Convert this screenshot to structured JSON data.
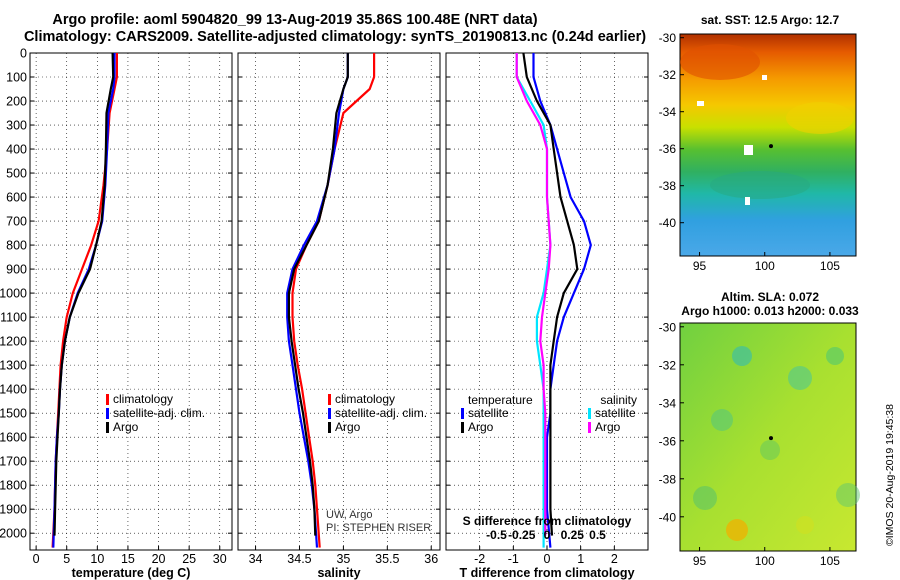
{
  "titles": {
    "line1": "Argo profile: aoml 5904820_99 13-Aug-2019 35.86S 100.48E (NRT data)",
    "line2": "Climatology: CARS2009. Satellite-adjusted climatology: synTS_20190813.nc (0.24d earlier)"
  },
  "colors": {
    "climatology": "#ff0000",
    "satellite": "#0000ff",
    "argo": "#000000",
    "sat_s": "#00e5ff",
    "argo_s": "#ff00ff"
  },
  "stamp": "©IMOS 20-Aug-2019 19:45:38",
  "chart_data": [
    {
      "id": "temperature",
      "type": "line",
      "xlabel": "temperature (deg C)",
      "ylabel": "",
      "xlim": [
        -1,
        32
      ],
      "ylim": [
        2070,
        0
      ],
      "xticks": [
        0,
        5,
        10,
        15,
        20,
        25,
        30
      ],
      "yticks": [
        0,
        100,
        200,
        300,
        400,
        500,
        600,
        700,
        800,
        900,
        1000,
        1100,
        1200,
        1300,
        1400,
        1500,
        1600,
        1700,
        1800,
        1900,
        2000
      ],
      "legend": [
        "climatology",
        "satellite-adj. clim.",
        "Argo"
      ],
      "series": [
        {
          "name": "climatology",
          "color": "#ff0000",
          "points": [
            [
              13.2,
              0
            ],
            [
              13.2,
              100
            ],
            [
              12.8,
              150
            ],
            [
              12.0,
              250
            ],
            [
              11.6,
              400
            ],
            [
              11.0,
              550
            ],
            [
              10.2,
              700
            ],
            [
              9.0,
              800
            ],
            [
              7.5,
              900
            ],
            [
              6.0,
              1000
            ],
            [
              5.0,
              1100
            ],
            [
              4.4,
              1200
            ],
            [
              4.0,
              1300
            ],
            [
              3.8,
              1400
            ],
            [
              3.6,
              1500
            ],
            [
              3.4,
              1600
            ],
            [
              3.2,
              1700
            ],
            [
              3.1,
              1800
            ],
            [
              3.0,
              1900
            ],
            [
              2.7,
              2060
            ]
          ]
        },
        {
          "name": "satellite-adj. clim.",
          "color": "#0000ff",
          "points": [
            [
              12.8,
              0
            ],
            [
              12.8,
              100
            ],
            [
              12.6,
              150
            ],
            [
              11.8,
              250
            ],
            [
              11.6,
              400
            ],
            [
              11.3,
              550
            ],
            [
              10.8,
              700
            ],
            [
              9.8,
              800
            ],
            [
              8.6,
              900
            ],
            [
              6.8,
              1000
            ],
            [
              5.5,
              1100
            ],
            [
              4.7,
              1200
            ],
            [
              4.2,
              1300
            ],
            [
              3.9,
              1400
            ],
            [
              3.7,
              1500
            ],
            [
              3.4,
              1600
            ],
            [
              3.2,
              1700
            ],
            [
              3.1,
              1800
            ],
            [
              3.0,
              1900
            ],
            [
              2.8,
              2060
            ]
          ]
        },
        {
          "name": "Argo",
          "color": "#000000",
          "points": [
            [
              12.5,
              0
            ],
            [
              12.6,
              100
            ],
            [
              12.2,
              150
            ],
            [
              11.5,
              250
            ],
            [
              11.4,
              400
            ],
            [
              11.2,
              550
            ],
            [
              10.7,
              700
            ],
            [
              9.8,
              800
            ],
            [
              8.8,
              900
            ],
            [
              6.9,
              1000
            ],
            [
              5.5,
              1100
            ],
            [
              4.7,
              1200
            ],
            [
              4.2,
              1300
            ],
            [
              3.9,
              1400
            ],
            [
              3.7,
              1500
            ],
            [
              3.5,
              1600
            ],
            [
              3.3,
              1700
            ],
            [
              3.2,
              1800
            ],
            [
              3.1,
              1900
            ],
            [
              3.0,
              2010
            ]
          ]
        }
      ]
    },
    {
      "id": "salinity",
      "type": "line",
      "xlabel": "salinity",
      "xlim": [
        33.8,
        36.1
      ],
      "ylim": [
        2070,
        0
      ],
      "xticks": [
        34,
        34.5,
        35,
        35.5,
        36
      ],
      "ytick_labels_visible": false,
      "legend": [
        "climatology",
        "satellite-adj. clim.",
        "Argo"
      ],
      "annotation": [
        "UW, Argo",
        "PI: STEPHEN RISER"
      ],
      "series": [
        {
          "name": "climatology",
          "color": "#ff0000",
          "points": [
            [
              35.35,
              0
            ],
            [
              35.35,
              100
            ],
            [
              35.3,
              150
            ],
            [
              35.0,
              250
            ],
            [
              34.9,
              400
            ],
            [
              34.82,
              550
            ],
            [
              34.72,
              700
            ],
            [
              34.58,
              800
            ],
            [
              34.46,
              900
            ],
            [
              34.42,
              1000
            ],
            [
              34.42,
              1100
            ],
            [
              34.44,
              1200
            ],
            [
              34.48,
              1300
            ],
            [
              34.53,
              1400
            ],
            [
              34.57,
              1500
            ],
            [
              34.61,
              1600
            ],
            [
              34.65,
              1700
            ],
            [
              34.68,
              1800
            ],
            [
              34.7,
              1900
            ],
            [
              34.73,
              2060
            ]
          ]
        },
        {
          "name": "satellite-adj. clim.",
          "color": "#0000ff",
          "points": [
            [
              35.05,
              0
            ],
            [
              35.05,
              100
            ],
            [
              35.0,
              150
            ],
            [
              34.95,
              250
            ],
            [
              34.9,
              400
            ],
            [
              34.82,
              550
            ],
            [
              34.7,
              700
            ],
            [
              34.55,
              800
            ],
            [
              34.42,
              900
            ],
            [
              34.36,
              1000
            ],
            [
              34.36,
              1100
            ],
            [
              34.38,
              1200
            ],
            [
              34.42,
              1300
            ],
            [
              34.46,
              1400
            ],
            [
              34.5,
              1500
            ],
            [
              34.55,
              1600
            ],
            [
              34.6,
              1700
            ],
            [
              34.64,
              1800
            ],
            [
              34.67,
              1900
            ],
            [
              34.7,
              2060
            ]
          ]
        },
        {
          "name": "Argo",
          "color": "#000000",
          "points": [
            [
              35.05,
              0
            ],
            [
              35.05,
              100
            ],
            [
              35.0,
              150
            ],
            [
              34.92,
              250
            ],
            [
              34.88,
              400
            ],
            [
              34.82,
              550
            ],
            [
              34.72,
              700
            ],
            [
              34.58,
              800
            ],
            [
              34.44,
              900
            ],
            [
              34.38,
              1000
            ],
            [
              34.38,
              1100
            ],
            [
              34.41,
              1200
            ],
            [
              34.45,
              1300
            ],
            [
              34.49,
              1400
            ],
            [
              34.54,
              1500
            ],
            [
              34.58,
              1600
            ],
            [
              34.62,
              1700
            ],
            [
              34.65,
              1800
            ],
            [
              34.67,
              1900
            ],
            [
              34.68,
              2010
            ]
          ]
        }
      ]
    },
    {
      "id": "difference",
      "type": "line",
      "xlabel": "T difference from climatology",
      "xlabel_top": "S difference from climatology",
      "xlim": [
        -3,
        3
      ],
      "ylim": [
        2070,
        0
      ],
      "xticks": [
        -2,
        -1,
        0,
        1,
        2
      ],
      "top_ticks": [
        {
          "v": -1.5,
          "label": "-0.5"
        },
        {
          "v": -0.75,
          "label": "-0.25"
        },
        {
          "v": 0,
          "label": "0"
        },
        {
          "v": 0.75,
          "label": "0.25"
        },
        {
          "v": 1.5,
          "label": "0.5"
        }
      ],
      "legend_left_title": "temperature",
      "legend_right_title": "salinity",
      "legend_left": [
        "satellite",
        "Argo"
      ],
      "legend_right": [
        "satellite",
        "Argo"
      ],
      "series": [
        {
          "name": "T satellite",
          "color": "#0000ff",
          "points": [
            [
              -0.4,
              0
            ],
            [
              -0.4,
              100
            ],
            [
              -0.2,
              200
            ],
            [
              0.1,
              300
            ],
            [
              0.3,
              400
            ],
            [
              0.5,
              500
            ],
            [
              0.7,
              600
            ],
            [
              1.1,
              700
            ],
            [
              1.3,
              800
            ],
            [
              1.1,
              900
            ],
            [
              0.8,
              1000
            ],
            [
              0.5,
              1100
            ],
            [
              0.3,
              1200
            ],
            [
              0.2,
              1300
            ],
            [
              0.1,
              1400
            ],
            [
              0.1,
              1500
            ],
            [
              0.0,
              1600
            ],
            [
              0.0,
              1700
            ],
            [
              0.0,
              1800
            ],
            [
              0.0,
              1900
            ],
            [
              0.1,
              2060
            ]
          ]
        },
        {
          "name": "T Argo",
          "color": "#000000",
          "points": [
            [
              -0.7,
              0
            ],
            [
              -0.6,
              100
            ],
            [
              -0.3,
              200
            ],
            [
              0.1,
              300
            ],
            [
              0.2,
              400
            ],
            [
              0.3,
              500
            ],
            [
              0.4,
              600
            ],
            [
              0.6,
              700
            ],
            [
              0.8,
              800
            ],
            [
              0.9,
              900
            ],
            [
              0.5,
              1000
            ],
            [
              0.3,
              1100
            ],
            [
              0.2,
              1200
            ],
            [
              0.1,
              1300
            ],
            [
              0.1,
              1400
            ],
            [
              0.1,
              1500
            ],
            [
              0.1,
              1600
            ],
            [
              0.1,
              1700
            ],
            [
              0.1,
              1800
            ],
            [
              0.1,
              1900
            ],
            [
              0.15,
              2010
            ]
          ]
        },
        {
          "name": "S satellite",
          "color": "#00e5ff",
          "points": [
            [
              -0.9,
              0
            ],
            [
              -0.9,
              100
            ],
            [
              -0.5,
              200
            ],
            [
              -0.1,
              300
            ],
            [
              0.0,
              400
            ],
            [
              0.0,
              500
            ],
            [
              0.0,
              600
            ],
            [
              0.05,
              700
            ],
            [
              0.1,
              800
            ],
            [
              0.0,
              900
            ],
            [
              -0.1,
              1000
            ],
            [
              -0.3,
              1100
            ],
            [
              -0.3,
              1200
            ],
            [
              -0.2,
              1300
            ],
            [
              -0.1,
              1400
            ],
            [
              -0.1,
              1500
            ],
            [
              -0.1,
              1600
            ],
            [
              -0.1,
              1700
            ],
            [
              -0.1,
              1800
            ],
            [
              -0.1,
              1900
            ],
            [
              -0.1,
              2060
            ]
          ]
        },
        {
          "name": "S Argo",
          "color": "#ff00ff",
          "points": [
            [
              -0.9,
              0
            ],
            [
              -0.9,
              100
            ],
            [
              -0.6,
              200
            ],
            [
              -0.2,
              300
            ],
            [
              0.0,
              400
            ],
            [
              0.0,
              500
            ],
            [
              0.0,
              600
            ],
            [
              0.05,
              700
            ],
            [
              0.1,
              800
            ],
            [
              0.05,
              900
            ],
            [
              -0.05,
              1000
            ],
            [
              -0.15,
              1100
            ],
            [
              -0.2,
              1200
            ],
            [
              -0.1,
              1300
            ],
            [
              -0.1,
              1400
            ],
            [
              -0.05,
              1500
            ],
            [
              -0.05,
              1600
            ],
            [
              -0.05,
              1700
            ],
            [
              -0.05,
              1800
            ],
            [
              -0.05,
              1900
            ],
            [
              -0.05,
              2010
            ]
          ]
        }
      ]
    },
    {
      "id": "sst_map",
      "type": "heatmap",
      "title": "sat. SST: 12.5 Argo: 12.7",
      "xlim": [
        93.5,
        107
      ],
      "ylim": [
        -41.8,
        -29.8
      ],
      "xticks": [
        95,
        100,
        105
      ],
      "yticks": [
        -30,
        -32,
        -34,
        -36,
        -38,
        -40
      ]
    },
    {
      "id": "sla_map",
      "type": "heatmap",
      "title_line1": "Altim. SLA: 0.072",
      "title_line2": "Argo h1000: 0.013 h2000: 0.033",
      "xlim": [
        93.5,
        107
      ],
      "ylim": [
        -41.8,
        -29.8
      ],
      "xticks": [
        95,
        100,
        105
      ],
      "yticks": [
        -30,
        -32,
        -34,
        -36,
        -38,
        -40
      ]
    }
  ]
}
